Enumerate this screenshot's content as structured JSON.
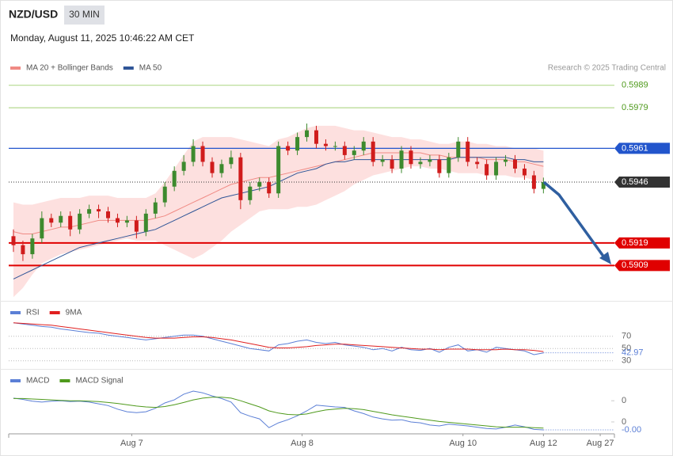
{
  "header": {
    "symbol": "NZD/USD",
    "interval": "30 MIN",
    "timestamp": "Monday, August 11, 2025 10:46:22 AM CET"
  },
  "chart_data": [
    {
      "type": "candlestick",
      "credit": "Research © 2025 Trading Central",
      "up_color": "#3d8a2e",
      "down_color": "#d01c1c",
      "xlim": [
        -0.5,
        63.5
      ],
      "ylim": [
        0.5894,
        0.6004
      ],
      "open": [
        0.5922,
        0.5918,
        0.5914,
        0.5921,
        0.593,
        0.5928,
        0.5931,
        0.5925,
        0.5932,
        0.5934,
        0.5933,
        0.593,
        0.5928,
        0.5929,
        0.5924,
        0.5932,
        0.5937,
        0.5944,
        0.5951,
        0.5955,
        0.5962,
        0.5955,
        0.595,
        0.5954,
        0.5957,
        0.5938,
        0.5944,
        0.5946,
        0.5941,
        0.5962,
        0.596,
        0.5966,
        0.5969,
        0.5963,
        0.5962,
        0.5962,
        0.5958,
        0.596,
        0.5964,
        0.5955,
        0.5956,
        0.5952,
        0.596,
        0.5954,
        0.5955,
        0.5956,
        0.595,
        0.5957,
        0.5964,
        0.5955,
        0.5954,
        0.5949,
        0.5955,
        0.5956,
        0.5952,
        0.5949,
        0.5943
      ],
      "high": [
        0.5925,
        0.592,
        0.5923,
        0.5933,
        0.5932,
        0.5933,
        0.5933,
        0.5934,
        0.5936,
        0.5936,
        0.5935,
        0.5932,
        0.5931,
        0.5931,
        0.5934,
        0.5939,
        0.5946,
        0.5953,
        0.5958,
        0.5965,
        0.5964,
        0.5957,
        0.5956,
        0.596,
        0.5959,
        0.5946,
        0.5948,
        0.5948,
        0.5964,
        0.5964,
        0.5968,
        0.5972,
        0.5971,
        0.5965,
        0.5964,
        0.5964,
        0.5962,
        0.5966,
        0.5966,
        0.5958,
        0.5958,
        0.5962,
        0.5962,
        0.5957,
        0.5958,
        0.5958,
        0.5959,
        0.5966,
        0.5966,
        0.5957,
        0.5956,
        0.5957,
        0.5958,
        0.5958,
        0.5954,
        0.5951,
        0.5948
      ],
      "low": [
        0.5915,
        0.5911,
        0.5912,
        0.5919,
        0.5926,
        0.5926,
        0.5922,
        0.5923,
        0.593,
        0.593,
        0.5928,
        0.5926,
        0.5926,
        0.5921,
        0.5922,
        0.593,
        0.5935,
        0.5942,
        0.5949,
        0.5953,
        0.5953,
        0.5948,
        0.5948,
        0.5952,
        0.5934,
        0.5936,
        0.5942,
        0.5939,
        0.5939,
        0.5958,
        0.5958,
        0.5964,
        0.5961,
        0.596,
        0.596,
        0.5956,
        0.5956,
        0.5958,
        0.5953,
        0.5953,
        0.595,
        0.595,
        0.5952,
        0.5952,
        0.5953,
        0.5948,
        0.5948,
        0.5955,
        0.5953,
        0.5952,
        0.5947,
        0.5947,
        0.5953,
        0.595,
        0.5947,
        0.5941,
        0.5941
      ],
      "close": [
        0.5918,
        0.5914,
        0.5921,
        0.593,
        0.5928,
        0.5931,
        0.5925,
        0.5932,
        0.5934,
        0.5933,
        0.593,
        0.5928,
        0.5929,
        0.5924,
        0.5932,
        0.5937,
        0.5944,
        0.5951,
        0.5955,
        0.5962,
        0.5955,
        0.595,
        0.5954,
        0.5957,
        0.5938,
        0.5944,
        0.5946,
        0.5941,
        0.5962,
        0.596,
        0.5966,
        0.5969,
        0.5963,
        0.5962,
        0.5962,
        0.5958,
        0.596,
        0.5964,
        0.5955,
        0.5956,
        0.5952,
        0.596,
        0.5954,
        0.5955,
        0.5956,
        0.595,
        0.5957,
        0.5964,
        0.5955,
        0.5954,
        0.5949,
        0.5955,
        0.5956,
        0.5952,
        0.5949,
        0.5943,
        0.5946
      ],
      "series": [
        {
          "name": "MA 20 + Bollinger Bands",
          "color": "#f08a84",
          "band_color": "#fde0df",
          "values": [
            0.5924,
            0.5923,
            0.5923,
            0.5924,
            0.5925,
            0.5926,
            0.5926,
            0.5927,
            0.5928,
            0.5929,
            0.5929,
            0.5929,
            0.5929,
            0.5929,
            0.5929,
            0.593,
            0.5931,
            0.5933,
            0.5935,
            0.5937,
            0.5939,
            0.5941,
            0.5943,
            0.5945,
            0.5946,
            0.5947,
            0.5948,
            0.5948,
            0.5949,
            0.595,
            0.5951,
            0.5952,
            0.5953,
            0.5954,
            0.5955,
            0.5956,
            0.5957,
            0.5958,
            0.5959,
            0.5959,
            0.5959,
            0.5959,
            0.5959,
            0.5959,
            0.5958,
            0.5958,
            0.5957,
            0.5957,
            0.5957,
            0.5957,
            0.5956,
            0.5956,
            0.5956,
            0.5955,
            0.5955,
            0.5954,
            0.5953
          ],
          "upper": [
            0.5937,
            0.5936,
            0.5936,
            0.5937,
            0.5938,
            0.5939,
            0.5939,
            0.5939,
            0.594,
            0.594,
            0.594,
            0.5939,
            0.5939,
            0.5939,
            0.5939,
            0.5941,
            0.5946,
            0.5952,
            0.5958,
            0.5964,
            0.5966,
            0.5966,
            0.5966,
            0.5966,
            0.5965,
            0.5964,
            0.5963,
            0.5962,
            0.5965,
            0.5966,
            0.5968,
            0.597,
            0.5971,
            0.5971,
            0.5971,
            0.597,
            0.5969,
            0.5969,
            0.5968,
            0.5967,
            0.5966,
            0.5966,
            0.5965,
            0.5965,
            0.5964,
            0.5963,
            0.5963,
            0.5964,
            0.5964,
            0.5963,
            0.5963,
            0.5962,
            0.5962,
            0.5961,
            0.5961,
            0.5961,
            0.596
          ],
          "lower": [
            0.5895,
            0.5899,
            0.5905,
            0.591,
            0.5912,
            0.5914,
            0.5915,
            0.5916,
            0.5917,
            0.5918,
            0.5919,
            0.592,
            0.5921,
            0.592,
            0.592,
            0.592,
            0.5918,
            0.5916,
            0.5914,
            0.5912,
            0.5914,
            0.5917,
            0.592,
            0.5924,
            0.5927,
            0.593,
            0.5933,
            0.5934,
            0.5934,
            0.5934,
            0.5935,
            0.5935,
            0.5936,
            0.5938,
            0.594,
            0.5942,
            0.5945,
            0.5947,
            0.5949,
            0.595,
            0.5951,
            0.5952,
            0.5953,
            0.5953,
            0.5952,
            0.5952,
            0.5951,
            0.595,
            0.595,
            0.595,
            0.5949,
            0.5949,
            0.5949,
            0.5948,
            0.5948,
            0.5947,
            0.5946
          ]
        },
        {
          "name": "MA 50",
          "color": "#2f5597",
          "values": [
            0.5903,
            0.5905,
            0.5907,
            0.5909,
            0.5911,
            0.5913,
            0.5915,
            0.5917,
            0.5918,
            0.5919,
            0.592,
            0.5921,
            0.5922,
            0.5923,
            0.5924,
            0.5925,
            0.5927,
            0.5929,
            0.5931,
            0.5933,
            0.5935,
            0.5937,
            0.5939,
            0.594,
            0.5941,
            0.5942,
            0.5943,
            0.5944,
            0.5946,
            0.5948,
            0.595,
            0.5951,
            0.5952,
            0.5954,
            0.5955,
            0.5955,
            0.5956,
            0.5956,
            0.5956,
            0.5956,
            0.5956,
            0.5956,
            0.5956,
            0.5956,
            0.5956,
            0.5956,
            0.5956,
            0.5957,
            0.5957,
            0.5957,
            0.5957,
            0.5957,
            0.5957,
            0.5956,
            0.5956,
            0.5955,
            0.5955
          ]
        }
      ],
      "levels": [
        {
          "value": 0.5989,
          "color": "#b5d98f",
          "text_color": "#4f9a1c",
          "boxed": false,
          "style": "solid"
        },
        {
          "value": 0.5979,
          "color": "#b5d98f",
          "text_color": "#4f9a1c",
          "boxed": false,
          "style": "solid"
        },
        {
          "value": 0.5961,
          "color": "#2255cc",
          "text_color": "#ffffff",
          "boxed": true,
          "style": "solid"
        },
        {
          "value": 0.5946,
          "color": "#333333",
          "text_color": "#ffffff",
          "boxed": true,
          "style": "dotted"
        },
        {
          "value": 0.5919,
          "color": "#e00000",
          "text_color": "#ffffff",
          "boxed": true,
          "style": "solid"
        },
        {
          "value": 0.5909,
          "color": "#e00000",
          "text_color": "#ffffff",
          "boxed": true,
          "style": "solid"
        }
      ]
    },
    {
      "type": "line",
      "xlim": [
        -0.5,
        63.5
      ],
      "ylim": [
        18,
        102
      ],
      "yticks": [
        70,
        50,
        30
      ],
      "grid": true,
      "series": [
        {
          "name": "RSI",
          "color": "#5b7fd6",
          "show_last_value": true,
          "values": [
            92,
            90,
            88,
            86,
            85,
            82,
            80,
            78,
            76,
            75,
            72,
            70,
            68,
            66,
            64,
            66,
            68,
            70,
            72,
            72,
            70,
            66,
            62,
            58,
            54,
            50,
            48,
            46,
            56,
            58,
            62,
            64,
            60,
            58,
            60,
            56,
            54,
            52,
            48,
            50,
            46,
            52,
            48,
            47,
            50,
            44,
            52,
            56,
            46,
            48,
            44,
            52,
            50,
            48,
            46,
            40,
            42.97
          ]
        },
        {
          "name": "9MA",
          "color": "#e02020",
          "values": [
            92,
            91,
            90,
            89,
            88,
            86,
            84,
            82,
            80,
            78,
            76,
            74,
            72,
            70,
            68,
            67,
            67,
            67,
            68,
            69,
            69,
            68,
            66,
            64,
            61,
            58,
            55,
            52,
            51,
            51,
            52,
            53,
            55,
            56,
            57,
            57,
            56,
            55,
            54,
            53,
            52,
            51,
            50,
            49,
            49,
            48,
            49,
            49,
            49,
            48,
            48,
            48,
            49,
            48,
            48,
            47,
            45
          ]
        }
      ]
    },
    {
      "type": "line",
      "xlim": [
        -0.5,
        63.5
      ],
      "ylim": [
        -0.0006,
        0.0008
      ],
      "yticks": [
        {
          "value": 0.00015,
          "label": "0"
        },
        {
          "value": -0.00033,
          "label": "0"
        }
      ],
      "grid": false,
      "xticks": [
        {
          "value": 12.5,
          "label": "Aug 7"
        },
        {
          "value": 30.5,
          "label": "Aug 8"
        },
        {
          "value": 47.5,
          "label": "Aug 10"
        },
        {
          "value": 56,
          "label": "Aug 12"
        },
        {
          "value": 62,
          "label": "Aug 27"
        }
      ],
      "series": [
        {
          "name": "MACD",
          "color": "#5b7fd6",
          "values": [
            0.00021,
            0.00018,
            0.00014,
            0.00012,
            0.00014,
            0.00015,
            0.00013,
            0.00014,
            0.00012,
            8e-05,
            4e-05,
            -4e-05,
            -0.0001,
            -0.00012,
            -0.0001,
            -2e-05,
            0.0001,
            0.00017,
            0.0003,
            0.00037,
            0.00033,
            0.00026,
            0.0002,
            0.00012,
            -0.00012,
            -0.0002,
            -0.00026,
            -0.00046,
            -0.00035,
            -0.00028,
            -0.00019,
            -8e-05,
            5e-05,
            3e-05,
            1e-05,
            0,
            -8e-05,
            -0.00014,
            -0.00022,
            -0.00026,
            -0.00029,
            -0.00028,
            -0.00033,
            -0.00035,
            -0.0004,
            -0.00042,
            -0.00038,
            -0.0004,
            -0.00042,
            -0.00045,
            -0.00048,
            -0.00049,
            -0.00045,
            -0.0004,
            -0.00044,
            -0.0005,
            -0.00051
          ],
          "value_labels": [
            null,
            null,
            null,
            null,
            null,
            null,
            null,
            null,
            null,
            null,
            null,
            null,
            null,
            null,
            null,
            null,
            null,
            null,
            null,
            null,
            null,
            null,
            null,
            null,
            null,
            null,
            null,
            null,
            null,
            null,
            null,
            null,
            null,
            null,
            null,
            null,
            null,
            null,
            null,
            null,
            null,
            null,
            null,
            null,
            null,
            null,
            null,
            null,
            null,
            null,
            null,
            null,
            null,
            null,
            null,
            null,
            "-0.00"
          ]
        },
        {
          "name": "MACD Signal",
          "color": "#4f9a1c",
          "values": [
            0.0002,
            0.0002,
            0.00019,
            0.00018,
            0.00017,
            0.00016,
            0.00015,
            0.00015,
            0.00014,
            0.00013,
            0.00011,
            9e-05,
            6e-05,
            3e-05,
            1e-05,
            0,
            2e-05,
            6e-05,
            0.00011,
            0.00017,
            0.00021,
            0.00023,
            0.00023,
            0.00021,
            0.00015,
            8e-05,
            1e-05,
            -8e-05,
            -0.00013,
            -0.00016,
            -0.00017,
            -0.00015,
            -0.0001,
            -6e-05,
            -4e-05,
            -2e-05,
            -3e-05,
            -5e-05,
            -9e-05,
            -0.00013,
            -0.00017,
            -0.0002,
            -0.00023,
            -0.00026,
            -0.00029,
            -0.00032,
            -0.00034,
            -0.00036,
            -0.00038,
            -0.0004,
            -0.00042,
            -0.00044,
            -0.00045,
            -0.00045,
            -0.00045,
            -0.00046,
            -0.00047
          ]
        }
      ]
    }
  ]
}
